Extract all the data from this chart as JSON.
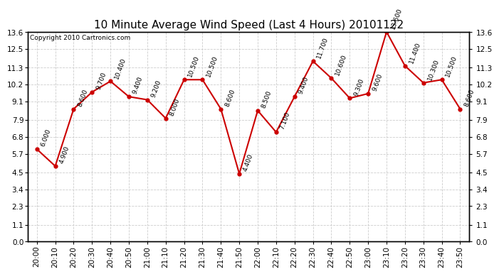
{
  "title": "10 Minute Average Wind Speed (Last 4 Hours) 20101122",
  "copyright": "Copyright 2010 Cartronics.com",
  "x_labels": [
    "20:00",
    "20:10",
    "20:20",
    "20:30",
    "20:40",
    "20:50",
    "21:00",
    "21:10",
    "21:20",
    "21:30",
    "21:40",
    "21:50",
    "22:00",
    "22:10",
    "22:20",
    "22:30",
    "22:40",
    "22:50",
    "23:00",
    "23:10",
    "23:20",
    "23:30",
    "23:40",
    "23:50"
  ],
  "y_values": [
    6.0,
    4.9,
    8.6,
    9.7,
    10.4,
    9.4,
    9.2,
    8.0,
    10.5,
    10.5,
    8.6,
    4.4,
    8.5,
    7.1,
    9.4,
    11.7,
    10.6,
    9.3,
    9.6,
    13.6,
    11.4,
    10.3,
    10.5,
    8.6
  ],
  "y_tick_vals": [
    0.0,
    1.1,
    2.3,
    3.4,
    4.5,
    5.7,
    6.8,
    7.9,
    9.1,
    10.2,
    11.3,
    12.5,
    13.6
  ],
  "y_tick_labels": [
    "0.0",
    "1.1",
    "2.3",
    "3.4",
    "4.5",
    "5.7",
    "6.8",
    "7.9",
    "9.1",
    "10.2",
    "11.3",
    "12.5",
    "13.6"
  ],
  "ylim": [
    0.0,
    13.6
  ],
  "line_color": "#cc0000",
  "marker_color": "#cc0000",
  "fig_bg_color": "#ffffff",
  "plot_bg_color": "#ffffff",
  "grid_color": "#cccccc",
  "title_fontsize": 11,
  "annotation_fontsize": 6.5,
  "tick_fontsize": 7.5,
  "copyright_fontsize": 6.5
}
